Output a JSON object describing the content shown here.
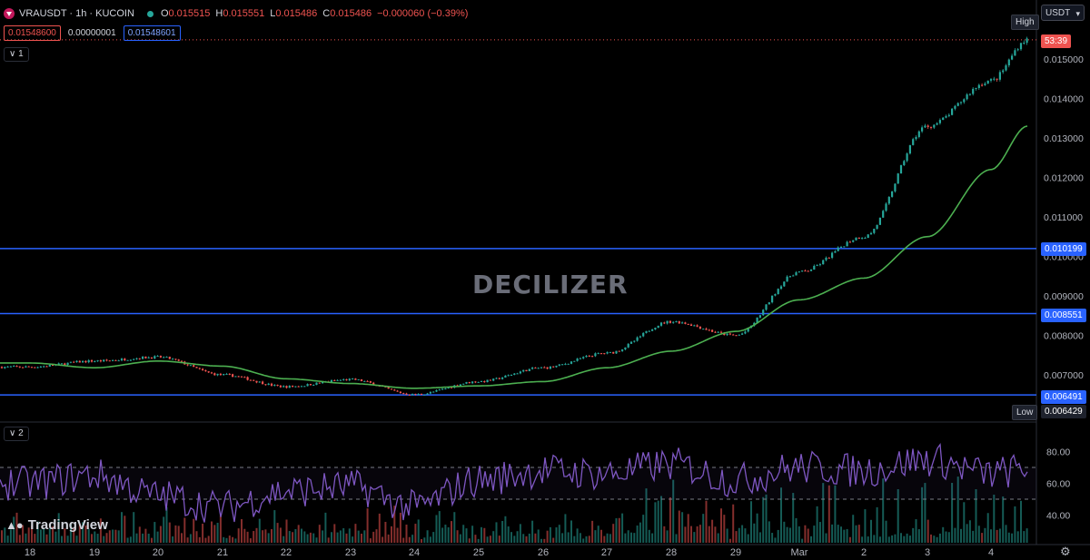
{
  "header": {
    "symbol": "VRAUSDT · 1h · KUCOIN",
    "open_label": "O",
    "open": "0.015515",
    "high_label": "H",
    "high": "0.015551",
    "low_label": "L",
    "low": "0.015486",
    "close_label": "C",
    "close": "0.015486",
    "change": "−0.000060 (−0.39%)",
    "bid": "0.01548600",
    "spread": "0.00000001",
    "ask": "0.01548601",
    "pane1_tag": "1",
    "pane2_tag": "2",
    "currency_button": "USDT"
  },
  "price_axis_tags": {
    "high_label": "High",
    "countdown": "53:39",
    "low_label": "Low",
    "low_value": "0.006429",
    "level_1": "0.010199",
    "level_2": "0.008551",
    "level_3": "0.006491"
  },
  "watermark": "DECILIZER",
  "branding": "TradingView",
  "colors": {
    "background": "#000000",
    "candle_up": "#26a69a",
    "candle_down": "#ef5350",
    "moving_average": "#4caf50",
    "horizontal_levels": "#2962ff",
    "oscillator": "#7e57c2",
    "current_price": "#ef5350"
  },
  "chart_data": [
    {
      "type": "candlestick",
      "symbol": "VRAUSDT",
      "timeframe": "1h",
      "exchange": "KUCOIN",
      "x_tick_labels": [
        "18",
        "19",
        "20",
        "21",
        "22",
        "23",
        "24",
        "25",
        "26",
        "27",
        "28",
        "29",
        "Mar",
        "2",
        "3",
        "4"
      ],
      "y_tick_labels": [
        "0.015000",
        "0.014000",
        "0.013000",
        "0.012000",
        "0.011000",
        "0.010000",
        "0.009000",
        "0.008000",
        "0.007000"
      ],
      "ylim": [
        0.0064,
        0.0157
      ],
      "grid": false,
      "close_path": [
        {
          "day": "18",
          "value": 0.0072
        },
        {
          "day": "19",
          "value": 0.00735
        },
        {
          "day": "20",
          "value": 0.00745
        },
        {
          "day": "21",
          "value": 0.007
        },
        {
          "day": "22",
          "value": 0.0067
        },
        {
          "day": "23",
          "value": 0.00688
        },
        {
          "day": "24",
          "value": 0.0065
        },
        {
          "day": "25",
          "value": 0.00683
        },
        {
          "day": "26",
          "value": 0.00718
        },
        {
          "day": "27",
          "value": 0.00755
        },
        {
          "day": "28",
          "value": 0.00835
        },
        {
          "day": "29",
          "value": 0.008
        },
        {
          "day": "Mar",
          "value": 0.0096
        },
        {
          "day": "2",
          "value": 0.0105
        },
        {
          "day": "3",
          "value": 0.0133
        },
        {
          "day": "4",
          "value": 0.01445
        },
        {
          "day": "last",
          "value": 0.015486
        }
      ],
      "moving_average": [
        {
          "day": "18",
          "value": 0.0073
        },
        {
          "day": "19",
          "value": 0.00718
        },
        {
          "day": "20",
          "value": 0.00735
        },
        {
          "day": "21",
          "value": 0.00722
        },
        {
          "day": "22",
          "value": 0.0069
        },
        {
          "day": "23",
          "value": 0.00678
        },
        {
          "day": "24",
          "value": 0.00666
        },
        {
          "day": "25",
          "value": 0.00672
        },
        {
          "day": "26",
          "value": 0.00683
        },
        {
          "day": "27",
          "value": 0.00718
        },
        {
          "day": "28",
          "value": 0.0076
        },
        {
          "day": "29",
          "value": 0.0081
        },
        {
          "day": "Mar",
          "value": 0.0089
        },
        {
          "day": "2",
          "value": 0.00945
        },
        {
          "day": "3",
          "value": 0.0105
        },
        {
          "day": "4",
          "value": 0.0122
        },
        {
          "day": "last",
          "value": 0.0133
        }
      ],
      "horizontal_levels": [
        0.010199,
        0.008551,
        0.006491
      ],
      "period_high": 0.015551,
      "period_low": 0.006429,
      "current_price": 0.015486
    },
    {
      "type": "line",
      "pane": "2",
      "y_tick_labels": [
        "80.00",
        "60.00",
        "40.00"
      ],
      "ylim": [
        30,
        90
      ],
      "reference_lines": [
        70,
        50
      ],
      "oscillator_path": [
        {
          "day": "18",
          "value": 60
        },
        {
          "day": "19",
          "value": 65
        },
        {
          "day": "20",
          "value": 52
        },
        {
          "day": "21",
          "value": 45
        },
        {
          "day": "22",
          "value": 55
        },
        {
          "day": "23",
          "value": 58
        },
        {
          "day": "24",
          "value": 45
        },
        {
          "day": "25",
          "value": 62
        },
        {
          "day": "26",
          "value": 68
        },
        {
          "day": "27",
          "value": 66
        },
        {
          "day": "28",
          "value": 72
        },
        {
          "day": "29",
          "value": 62
        },
        {
          "day": "Mar",
          "value": 70
        },
        {
          "day": "2",
          "value": 68
        },
        {
          "day": "3",
          "value": 75
        },
        {
          "day": "4",
          "value": 66
        },
        {
          "day": "last",
          "value": 69
        }
      ]
    }
  ]
}
